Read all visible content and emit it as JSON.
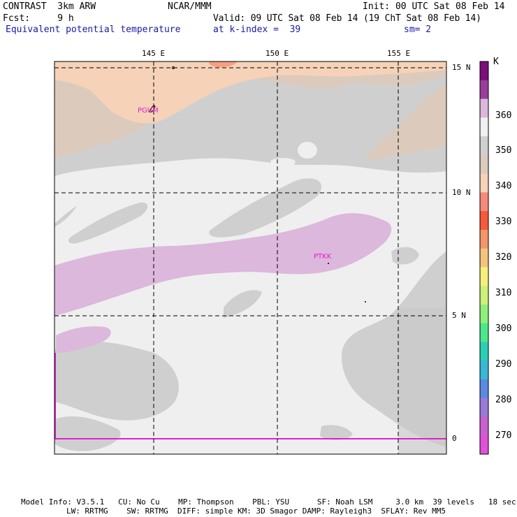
{
  "header": {
    "line1_left": "CONTRAST  3km ARW",
    "line1_center": "NCAR/MMM",
    "line1_right": "Init: 00 UTC Sat 08 Feb 14",
    "line2_left": "Fcst:     9 h",
    "line2_right": "Valid: 09 UTC Sat 08 Feb 14 (19 ChT Sat 08 Feb 14)",
    "line3_left": "Equivalent potential temperature",
    "line3_center": "at k-index =  39",
    "line3_right": "sm= 2"
  },
  "map": {
    "lon_labels": [
      "145 E",
      "150 E",
      "155 E"
    ],
    "lat_labels": [
      "15 N",
      "10 N",
      "5 N",
      "0"
    ],
    "stations": [
      "PGUM",
      "PTKK"
    ]
  },
  "colorbar": {
    "unit": "K",
    "labels": [
      "360",
      "350",
      "340",
      "330",
      "320",
      "310",
      "300",
      "290",
      "280",
      "270"
    ],
    "colors": [
      "#7a0f7a",
      "#9b3d9b",
      "#dcb8dc",
      "#f0f0f0",
      "#d0d0d0",
      "#dccbbd",
      "#f5d2b8",
      "#f58a7a",
      "#f55a3a",
      "#f5956a",
      "#f5c47a",
      "#f5f07a",
      "#cdf07a",
      "#8ef07a",
      "#4ae88a",
      "#2ad0b4",
      "#38b8d8",
      "#5a8ae0",
      "#9a7ad8",
      "#c860d0",
      "#e050d8"
    ]
  },
  "footer": {
    "line1": "Model Info: V3.5.1   CU: No Cu    MP: Thompson    PBL: YSU      SF: Noah LSM     3.0 km  39 levels   18 sec",
    "line2": "LW: RRTMG    SW: RRTMG  DIFF: simple KM: 3D Smagor DAMP: Rayleigh3  SFLAY: Rev MM5"
  }
}
